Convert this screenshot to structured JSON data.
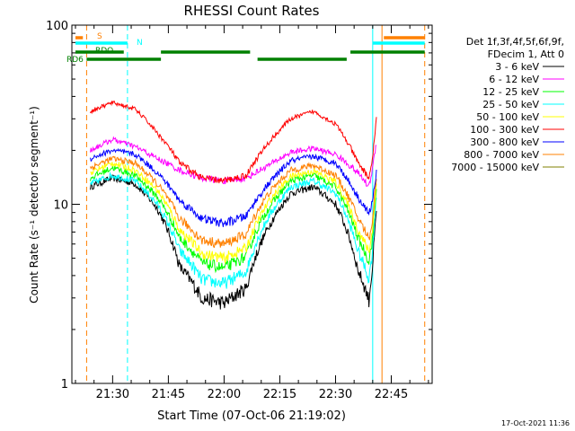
{
  "chart_data": {
    "type": "line",
    "title": "RHESSI Count Rates",
    "xlabel": "Start Time (07-Oct-06 21:19:02)",
    "ylabel": "Count Rate (s⁻¹ detector segment⁻¹)",
    "yscale": "log",
    "ylim": [
      1,
      100
    ],
    "x_range": [
      "21:19:02",
      "22:56:00"
    ],
    "x_ticks": [
      "21:30",
      "21:45",
      "22:00",
      "22:15",
      "22:30",
      "22:45"
    ],
    "y_ticks": [
      "1",
      "10",
      "100"
    ],
    "footer_date": "17-Oct-2021 11:36",
    "legend": {
      "header": [
        "Det 1f,3f,4f,5f,6f,9f,",
        "FDecim 1, Att 0"
      ],
      "placement": "right"
    },
    "series": [
      {
        "name": "3 - 6 keV",
        "color": "#000000",
        "x": [
          "21:24",
          "21:30",
          "21:36",
          "21:42",
          "21:48",
          "21:54",
          "22:00",
          "22:06",
          "22:12",
          "22:18",
          "22:24",
          "22:30",
          "22:36",
          "22:39",
          "22:40",
          "22:41"
        ],
        "values": [
          12.5,
          14,
          13,
          9.5,
          4.5,
          3.0,
          2.8,
          3.4,
          7.5,
          11.5,
          12.5,
          10,
          4.3,
          2.9,
          4.5,
          9
        ]
      },
      {
        "name": "6 - 12 keV",
        "color": "#ff00ff",
        "x": [
          "21:24",
          "21:30",
          "21:36",
          "21:42",
          "21:48",
          "21:54",
          "22:00",
          "22:06",
          "22:12",
          "22:18",
          "22:24",
          "22:30",
          "22:36",
          "22:39",
          "22:40",
          "22:41"
        ],
        "values": [
          20,
          23,
          21,
          18,
          15.5,
          14,
          13.5,
          14,
          16.5,
          19.5,
          20.5,
          19,
          15,
          12.5,
          16,
          22
        ]
      },
      {
        "name": "12 - 25 keV",
        "color": "#00ff00",
        "x": [
          "21:24",
          "21:30",
          "21:36",
          "21:42",
          "21:48",
          "21:54",
          "22:00",
          "22:06",
          "22:12",
          "22:18",
          "22:24",
          "22:30",
          "22:36",
          "22:39",
          "22:40",
          "22:41"
        ],
        "values": [
          14,
          16,
          14.5,
          11,
          6.5,
          4.7,
          4.4,
          5.1,
          9.5,
          13.5,
          14.5,
          12.5,
          6.5,
          4.8,
          6.5,
          12
        ]
      },
      {
        "name": "25 - 50 keV",
        "color": "#00ffff",
        "x": [
          "21:24",
          "21:30",
          "21:36",
          "21:42",
          "21:48",
          "21:54",
          "22:00",
          "22:06",
          "22:12",
          "22:18",
          "22:24",
          "22:30",
          "22:36",
          "22:39",
          "22:40",
          "22:41"
        ],
        "values": [
          13,
          14.5,
          13.5,
          10,
          5.5,
          3.8,
          3.6,
          4.2,
          8.5,
          12.5,
          13.5,
          11.5,
          5.5,
          3.8,
          5.5,
          11
        ]
      },
      {
        "name": "50 - 100 keV",
        "color": "#ffff00",
        "x": [
          "21:24",
          "21:30",
          "21:36",
          "21:42",
          "21:48",
          "21:54",
          "22:00",
          "22:06",
          "22:12",
          "22:18",
          "22:24",
          "22:30",
          "22:36",
          "22:39",
          "22:40",
          "22:41"
        ],
        "values": [
          15,
          17,
          15.5,
          12,
          7.2,
          5.3,
          5.0,
          5.7,
          10.3,
          14.3,
          15.3,
          13.3,
          7.2,
          5.4,
          7.2,
          13
        ]
      },
      {
        "name": "100 - 300 keV",
        "color": "#ff0000",
        "x": [
          "21:24",
          "21:30",
          "21:36",
          "21:42",
          "21:48",
          "21:54",
          "22:00",
          "22:06",
          "22:12",
          "22:18",
          "22:24",
          "22:30",
          "22:36",
          "22:39",
          "22:40",
          "22:41"
        ],
        "values": [
          33,
          37,
          34,
          25,
          17,
          14,
          13.5,
          14.5,
          22,
          30,
          33,
          28,
          17,
          14,
          18,
          30
        ]
      },
      {
        "name": "300 - 800 keV",
        "color": "#0000ff",
        "x": [
          "21:24",
          "21:30",
          "21:36",
          "21:42",
          "21:48",
          "21:54",
          "22:00",
          "22:06",
          "22:12",
          "22:18",
          "22:24",
          "22:30",
          "22:36",
          "22:39",
          "22:40",
          "22:41"
        ],
        "values": [
          18,
          20,
          19,
          15,
          10.5,
          8.3,
          7.8,
          8.6,
          13,
          17.5,
          18.5,
          17,
          11,
          8.8,
          10.5,
          15
        ]
      },
      {
        "name": "800 - 7000 keV",
        "color": "#ff8000",
        "x": [
          "21:24",
          "21:30",
          "21:36",
          "21:42",
          "21:48",
          "21:54",
          "22:00",
          "22:06",
          "22:12",
          "22:18",
          "22:24",
          "22:30",
          "22:36",
          "22:39",
          "22:40",
          "22:41"
        ],
        "values": [
          16,
          18,
          17,
          13,
          8.3,
          6.3,
          6.0,
          6.8,
          11.5,
          15.5,
          16.5,
          14.5,
          8.4,
          6.4,
          8.2,
          14
        ]
      },
      {
        "name": "7000 - 15000 keV",
        "color": "#808000",
        "x": [],
        "values": []
      }
    ],
    "markers": [
      {
        "label": "S",
        "color": "#ff8000",
        "segments": [
          [
            "21:20",
            "21:22"
          ],
          [
            "22:43",
            "22:54"
          ]
        ]
      },
      {
        "label": "N",
        "color": "#00ffff",
        "segments": [
          [
            "21:20",
            "21:34"
          ],
          [
            "22:40",
            "22:54"
          ]
        ]
      },
      {
        "label": "RDO",
        "color": "#008000",
        "segments": [
          [
            "21:20",
            "21:33"
          ],
          [
            "21:43",
            "22:07"
          ],
          [
            "22:34",
            "22:54"
          ]
        ]
      },
      {
        "label": "RD6",
        "color": "#008000",
        "segments": [
          [
            "21:23",
            "21:43"
          ],
          [
            "22:09",
            "22:33"
          ]
        ]
      }
    ],
    "vlines": [
      {
        "x": "21:19:02",
        "color": "#00ffff",
        "style": "solid"
      },
      {
        "x": "21:23:00",
        "color": "#ff8000",
        "style": "dashed"
      },
      {
        "x": "21:34:00",
        "color": "#00ffff",
        "style": "dashed"
      },
      {
        "x": "22:40:00",
        "color": "#00ffff",
        "style": "solid"
      },
      {
        "x": "22:42:30",
        "color": "#ff8000",
        "style": "solid"
      },
      {
        "x": "22:54:00",
        "color": "#ff8000",
        "style": "dashed"
      }
    ]
  }
}
